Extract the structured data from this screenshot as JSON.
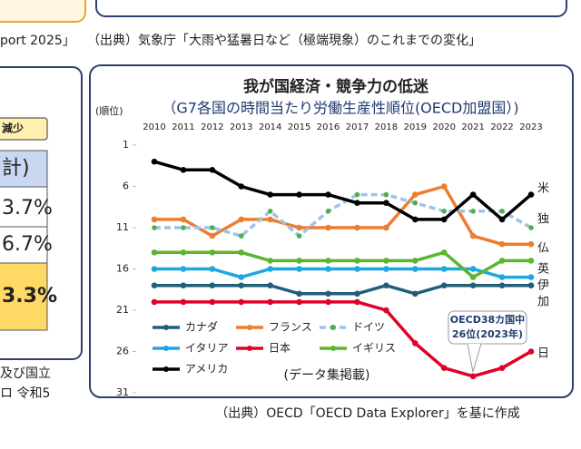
{
  "page": {
    "top_left_text": "port 2025」",
    "top_source": "（出典）気象庁「大雨や猛暑日など（極端現象）のこれまでの変化」",
    "left_badge": "減少",
    "left_cells": [
      "計)",
      "3.7%",
      "6.7%",
      "3.3%"
    ],
    "left_footer": [
      "及び国立",
      "ロ  令和5"
    ],
    "bottom_source": "（出典）OECD「OECD Data Explorer」を基に作成"
  },
  "chart_data": {
    "type": "line",
    "title": "我が国経済・競争力の低迷",
    "subtitle": "（G7各国の時間当たり労働生産性順位(OECD加盟国）)",
    "y_label": "(順位)",
    "categories": [
      "2010",
      "2011",
      "2012",
      "2013",
      "2014",
      "2015",
      "2016",
      "2017",
      "2018",
      "2019",
      "2020",
      "2021",
      "2022",
      "2023"
    ],
    "ylim": [
      1,
      31
    ],
    "yticks": [
      1,
      6,
      11,
      16,
      21,
      26,
      31
    ],
    "y_inverted": true,
    "grid": false,
    "series": [
      {
        "name": "カナダ",
        "color": "#1f5f7a",
        "end_label": "加",
        "values": [
          18,
          18,
          18,
          18,
          18,
          19,
          19,
          19,
          18,
          19,
          18,
          18,
          18,
          18
        ]
      },
      {
        "name": "フランス",
        "color": "#ed7d31",
        "end_label": "仏",
        "values": [
          10,
          10,
          12,
          10,
          10,
          11,
          11,
          11,
          11,
          7,
          6,
          12,
          13,
          13
        ]
      },
      {
        "name": "ドイツ",
        "color": "#9dc3e6",
        "marker_color": "#4caf50",
        "dashed": true,
        "end_label": "独",
        "values": [
          11,
          11,
          11,
          12,
          9,
          12,
          9,
          7,
          7,
          8,
          9,
          9,
          9,
          11
        ]
      },
      {
        "name": "イタリア",
        "color": "#1ea7e0",
        "end_label": "伊",
        "values": [
          16,
          16,
          16,
          17,
          16,
          16,
          16,
          16,
          16,
          16,
          16,
          16,
          17,
          17
        ]
      },
      {
        "name": "日本",
        "color": "#e0002a",
        "end_label": "日",
        "values": [
          20,
          20,
          20,
          20,
          20,
          20,
          20,
          20,
          21,
          25,
          28,
          29,
          28,
          26
        ]
      },
      {
        "name": "イギリス",
        "color": "#5cb531",
        "end_label": "英",
        "values": [
          14,
          14,
          14,
          14,
          15,
          15,
          15,
          15,
          15,
          15,
          14,
          17,
          15,
          15
        ]
      },
      {
        "name": "アメリカ",
        "color": "#000000",
        "end_label": "米",
        "values": [
          3,
          4,
          4,
          6,
          7,
          7,
          7,
          8,
          8,
          10,
          10,
          7,
          10,
          7
        ]
      }
    ],
    "annotation_lines": [
      "OECD38カ国中",
      "26位(2023年)"
    ],
    "note": "(データ集掲載)"
  }
}
